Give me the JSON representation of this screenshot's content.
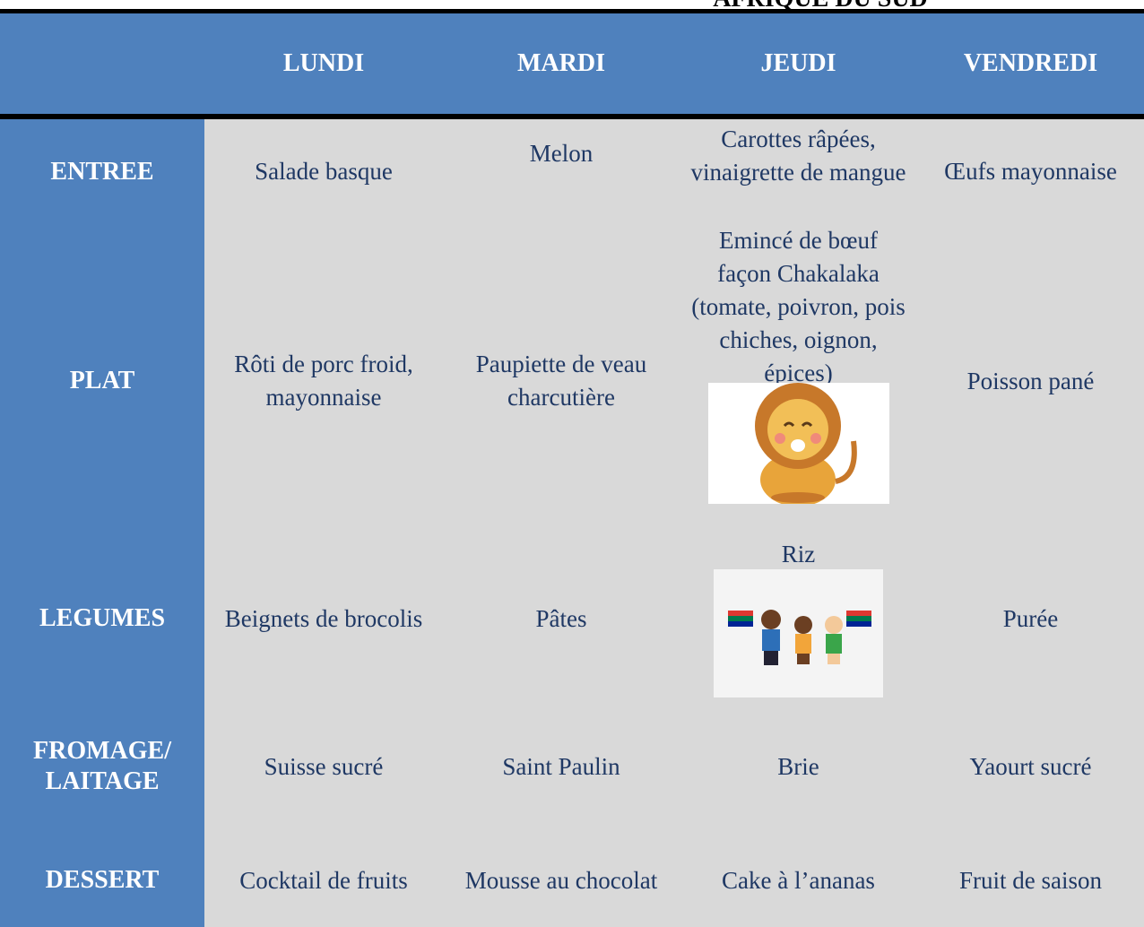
{
  "title": "AFRIQUE DU SUD",
  "table": {
    "header": [
      "LUNDI",
      "MARDI",
      "JEUDI",
      "VENDREDI"
    ],
    "rows": [
      {
        "label": "ENTREE",
        "cells": [
          "Salade basque",
          "Melon",
          "Carottes râpées, vinaigrette de mangue",
          "Œufs mayonnaise"
        ]
      },
      {
        "label": "PLAT",
        "cells": [
          "Rôti de porc froid, mayonnaise",
          "Paupiette de veau charcutière",
          "Emincé de bœuf façon Chakalaka (tomate, poivron, pois chiches, oignon, épices)",
          "Poisson pané"
        ]
      },
      {
        "label": "LEGUMES",
        "cells": [
          "Beignets de brocolis",
          "Pâtes",
          "Riz",
          "Purée"
        ]
      },
      {
        "label": "FROMAGE/ LAITAGE",
        "cells": [
          "Suisse sucré",
          "Saint Paulin",
          "Brie",
          "Yaourt sucré"
        ]
      },
      {
        "label": "DESSERT",
        "cells": [
          "Cocktail de fruits",
          "Mousse au chocolat",
          "Cake à l’ananas",
          "Fruit de saison"
        ]
      }
    ]
  }
}
